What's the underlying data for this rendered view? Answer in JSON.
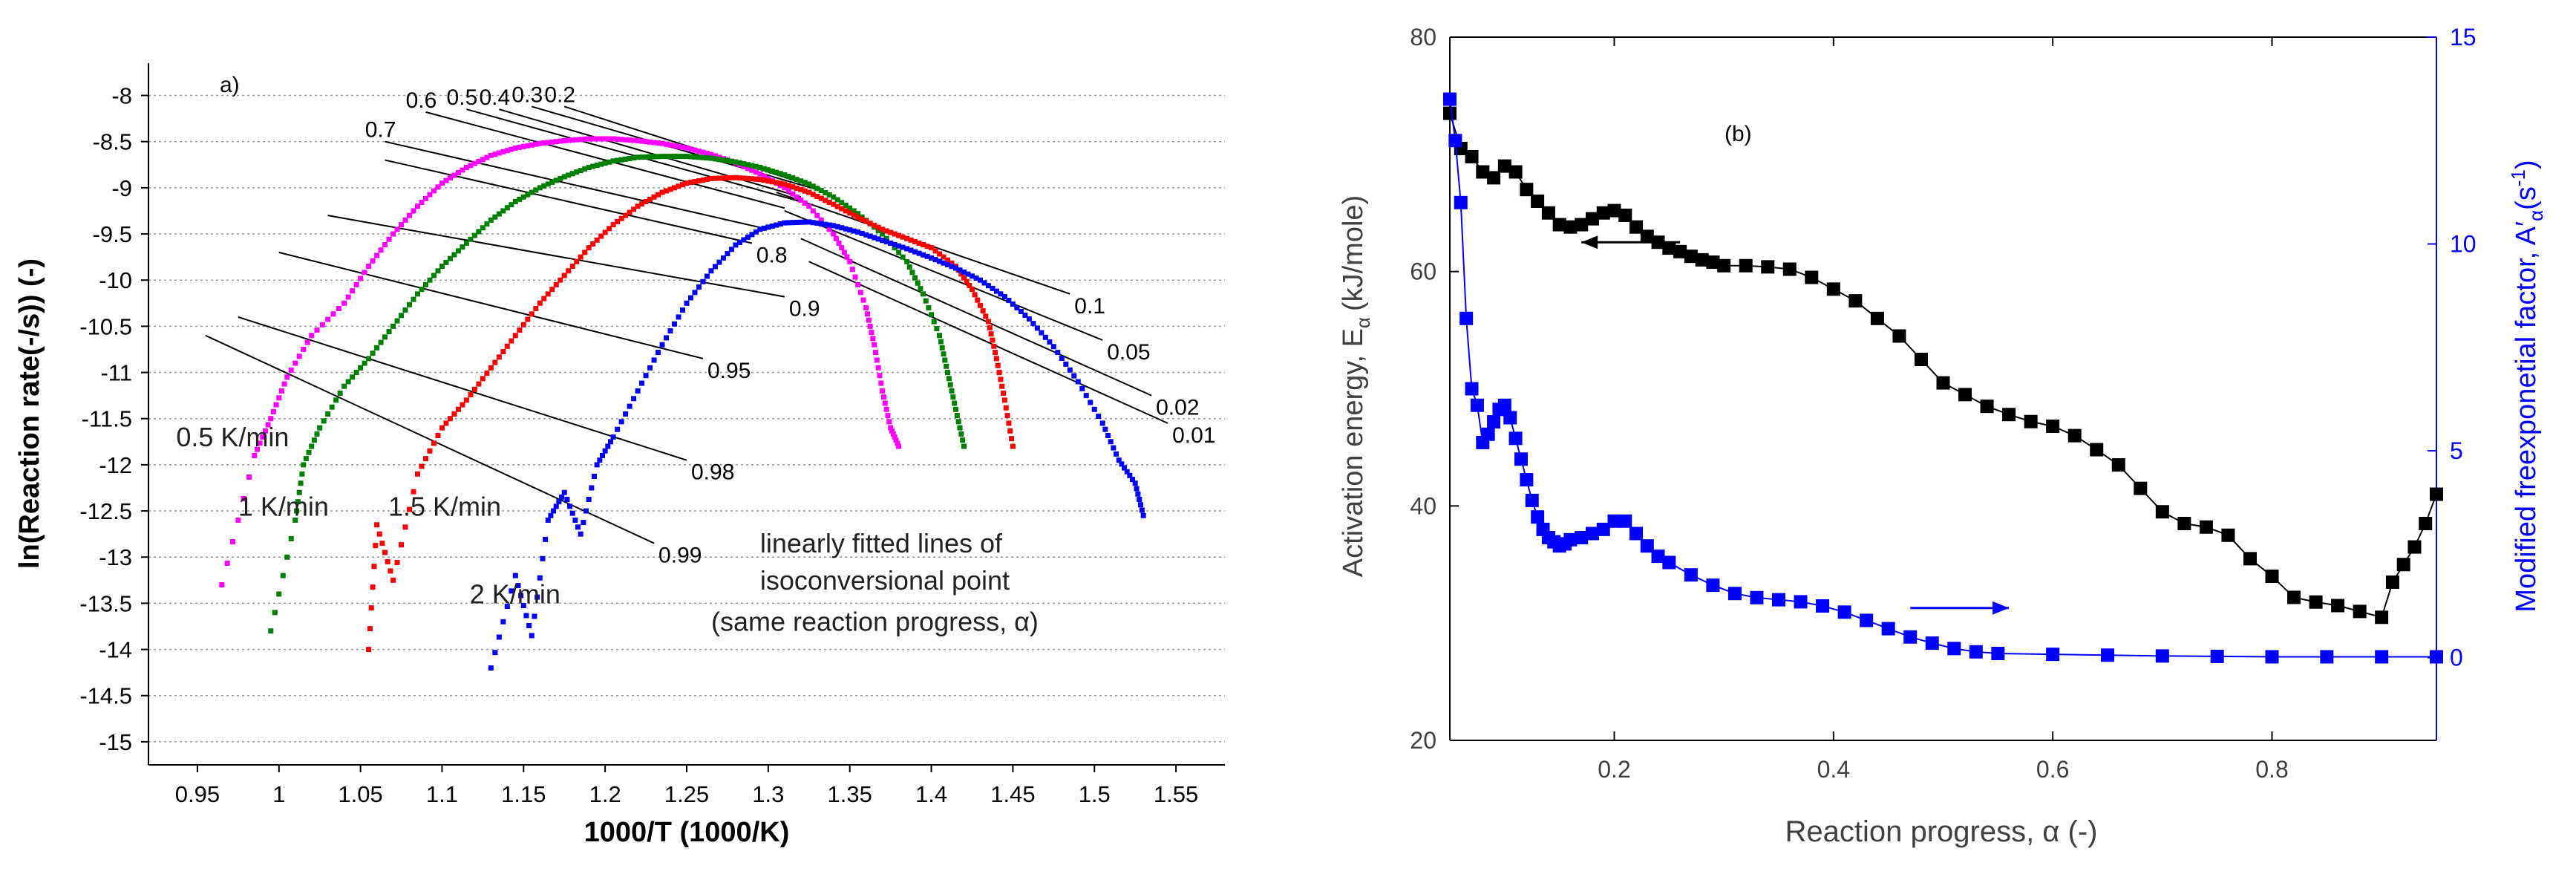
{
  "chart_data": [
    {
      "type": "scatter",
      "panel_label": "a)",
      "xlabel": "1000/T (1000/K)",
      "ylabel": "ln(Reaction rate(-/s)) (-)",
      "xlim": [
        0.92,
        1.58
      ],
      "ylim": [
        -15.25,
        -7.65
      ],
      "x_ticks": [
        0.95,
        1.0,
        1.05,
        1.1,
        1.15,
        1.2,
        1.25,
        1.3,
        1.35,
        1.4,
        1.45,
        1.5,
        1.55
      ],
      "x_tick_labels": [
        "0.95",
        "1",
        "1.05",
        "1.1",
        "1.15",
        "1.2",
        "1.25",
        "1.3",
        "1.35",
        "1.4",
        "1.45",
        "1.5",
        "1.55"
      ],
      "y_ticks": [
        -8,
        -8.5,
        -9,
        -9.5,
        -10,
        -10.5,
        -11,
        -11.5,
        -12,
        -12.5,
        -13,
        -13.5,
        -14,
        -14.5,
        -15
      ],
      "y_tick_labels": [
        "-8",
        "-8.5",
        "-9",
        "-9.5",
        "-10",
        "-10.5",
        "-11",
        "-11.5",
        "-12",
        "-12.5",
        "-13",
        "-13.5",
        "-14",
        "-14.5",
        "-15"
      ],
      "grid": "horizontal dotted",
      "series": [
        {
          "name": "0.5 K/min",
          "color": "#ff00ff",
          "x": [
            0.965,
            0.985,
            0.995,
            1.005,
            1.02,
            1.04,
            1.055,
            1.07,
            1.085,
            1.1,
            1.115,
            1.13,
            1.145,
            1.16,
            1.175,
            1.19,
            1.205,
            1.22,
            1.235,
            1.25,
            1.265,
            1.28,
            1.295,
            1.31,
            1.325,
            1.34,
            1.35,
            1.36,
            1.365,
            1.37,
            1.375,
            1.38
          ],
          "y": [
            -13.3,
            -11.9,
            -11.5,
            -11.05,
            -10.6,
            -10.25,
            -9.85,
            -9.5,
            -9.2,
            -8.95,
            -8.78,
            -8.65,
            -8.57,
            -8.52,
            -8.49,
            -8.47,
            -8.47,
            -8.49,
            -8.52,
            -8.57,
            -8.64,
            -8.73,
            -8.85,
            -9.0,
            -9.2,
            -9.5,
            -9.8,
            -10.3,
            -10.7,
            -11.2,
            -11.6,
            -11.8
          ]
        },
        {
          "name": "1 K/min",
          "color": "#008000",
          "x": [
            0.995,
            1.01,
            1.015,
            1.025,
            1.04,
            1.055,
            1.07,
            1.085,
            1.1,
            1.115,
            1.13,
            1.145,
            1.16,
            1.175,
            1.19,
            1.205,
            1.22,
            1.235,
            1.25,
            1.265,
            1.28,
            1.295,
            1.31,
            1.325,
            1.34,
            1.355,
            1.37,
            1.385,
            1.395,
            1.405,
            1.41,
            1.415,
            1.42
          ],
          "y": [
            -13.8,
            -12.6,
            -12.0,
            -11.6,
            -11.15,
            -10.85,
            -10.5,
            -10.15,
            -9.85,
            -9.6,
            -9.35,
            -9.15,
            -9.0,
            -8.88,
            -8.78,
            -8.71,
            -8.67,
            -8.66,
            -8.66,
            -8.68,
            -8.72,
            -8.78,
            -8.86,
            -8.96,
            -9.1,
            -9.28,
            -9.5,
            -9.8,
            -10.15,
            -10.6,
            -11.0,
            -11.4,
            -11.8
          ]
        },
        {
          "name": "1.5 K/min",
          "color": "#ff0000",
          "x": [
            1.055,
            1.06,
            1.07,
            1.085,
            1.1,
            1.115,
            1.13,
            1.145,
            1.16,
            1.175,
            1.19,
            1.205,
            1.22,
            1.235,
            1.25,
            1.265,
            1.28,
            1.295,
            1.31,
            1.325,
            1.34,
            1.355,
            1.37,
            1.385,
            1.4,
            1.415,
            1.425,
            1.435,
            1.44,
            1.445,
            1.45
          ],
          "y": [
            -14.0,
            -12.65,
            -13.25,
            -12.1,
            -11.6,
            -11.3,
            -10.95,
            -10.6,
            -10.25,
            -9.95,
            -9.65,
            -9.4,
            -9.2,
            -9.05,
            -8.95,
            -8.9,
            -8.89,
            -8.91,
            -8.96,
            -9.05,
            -9.18,
            -9.32,
            -9.45,
            -9.55,
            -9.65,
            -9.85,
            -10.1,
            -10.45,
            -10.85,
            -11.3,
            -11.8
          ]
        },
        {
          "name": "2 K/min",
          "color": "#0000ff",
          "x": [
            1.13,
            1.145,
            1.155,
            1.165,
            1.175,
            1.185,
            1.195,
            1.205,
            1.22,
            1.235,
            1.25,
            1.265,
            1.28,
            1.295,
            1.31,
            1.325,
            1.34,
            1.355,
            1.37,
            1.385,
            1.4,
            1.415,
            1.43,
            1.445,
            1.46,
            1.475,
            1.49,
            1.505,
            1.515,
            1.525,
            1.53
          ],
          "y": [
            -14.2,
            -13.2,
            -13.85,
            -12.6,
            -12.3,
            -12.75,
            -12.0,
            -11.7,
            -11.2,
            -10.7,
            -10.25,
            -9.9,
            -9.62,
            -9.45,
            -9.38,
            -9.37,
            -9.41,
            -9.48,
            -9.57,
            -9.66,
            -9.76,
            -9.87,
            -10.0,
            -10.18,
            -10.42,
            -10.72,
            -11.1,
            -11.55,
            -11.95,
            -12.2,
            -12.55
          ]
        }
      ],
      "isoconversional_lines": [
        {
          "label": "0.2",
          "x": [
            1.175,
            1.33
          ],
          "y": [
            -8.12,
            -9.0
          ]
        },
        {
          "label": "0.3",
          "x": [
            1.155,
            1.33
          ],
          "y": [
            -8.12,
            -9.02
          ]
        },
        {
          "label": "0.4",
          "x": [
            1.135,
            1.32
          ],
          "y": [
            -8.15,
            -9.1
          ]
        },
        {
          "label": "0.5",
          "x": [
            1.115,
            1.32
          ],
          "y": [
            -8.15,
            -9.15
          ]
        },
        {
          "label": "0.6",
          "x": [
            1.09,
            1.31
          ],
          "y": [
            -8.18,
            -9.22
          ]
        },
        {
          "label": "0.7",
          "x": [
            1.065,
            1.3
          ],
          "y": [
            -8.5,
            -9.45
          ]
        },
        {
          "label": "0.8",
          "x": [
            1.065,
            1.29
          ],
          "y": [
            -8.7,
            -9.6
          ]
        },
        {
          "label": "0.9",
          "x": [
            1.03,
            1.31
          ],
          "y": [
            -9.3,
            -10.18
          ]
        },
        {
          "label": "0.95",
          "x": [
            1.0,
            1.26
          ],
          "y": [
            -9.7,
            -10.85
          ]
        },
        {
          "label": "0.98",
          "x": [
            0.975,
            1.25
          ],
          "y": [
            -10.4,
            -11.95
          ]
        },
        {
          "label": "0.99",
          "x": [
            0.955,
            1.23
          ],
          "y": [
            -10.6,
            -12.85
          ]
        },
        {
          "label": "0.1",
          "x": [
            1.305,
            1.485
          ],
          "y": [
            -9.05,
            -10.15
          ]
        },
        {
          "label": "0.05",
          "x": [
            1.31,
            1.505
          ],
          "y": [
            -9.25,
            -10.65
          ]
        },
        {
          "label": "0.02",
          "x": [
            1.32,
            1.535
          ],
          "y": [
            -9.55,
            -11.25
          ]
        },
        {
          "label": "0.01",
          "x": [
            1.325,
            1.545
          ],
          "y": [
            -9.8,
            -11.55
          ]
        }
      ],
      "annotations": [
        {
          "text": "0.5 K/min",
          "x": 0.937,
          "y": -11.8
        },
        {
          "text": "1 K/min",
          "x": 0.975,
          "y": -12.55
        },
        {
          "text": "1.5 K/min",
          "x": 1.067,
          "y": -12.55
        },
        {
          "text": "2 K/min",
          "x": 1.117,
          "y": -13.5
        },
        {
          "text": "linearly fitted lines of",
          "x": 1.295,
          "y": -12.95
        },
        {
          "text": "isoconversional point",
          "x": 1.295,
          "y": -13.35
        },
        {
          "text": "(same reaction progress, α)",
          "x": 1.265,
          "y": -13.8
        }
      ]
    },
    {
      "type": "line",
      "panel_label": "(b)",
      "xlabel": "Reaction progress, α (-)",
      "ylabel_left": "Activation energy, E",
      "ylabel_left_sub": "α",
      "ylabel_left_tail": "(kJ/mole)",
      "ylabel_right": "Modified freexponetial factor, A",
      "ylabel_right_mark": "′",
      "ylabel_right_sub": "α",
      "ylabel_right_tail": "(s",
      "ylabel_right_sup": "-1",
      "ylabel_right_close": ")",
      "right_axis_color": "#0000ff",
      "xlim": [
        0.05,
        0.95
      ],
      "ylim_left": [
        20,
        80
      ],
      "ylim_right": [
        -2,
        15
      ],
      "x_ticks": [
        0.2,
        0.4,
        0.6,
        0.8
      ],
      "x_tick_labels": [
        "0.2",
        "0.4",
        "0.6",
        "0.8"
      ],
      "y_left_ticks": [
        20,
        40,
        60,
        80
      ],
      "y_left_tick_labels": [
        "20",
        "40",
        "60",
        "80"
      ],
      "y_right_ticks": [
        0,
        5,
        10,
        15
      ],
      "y_right_tick_labels": [
        "0",
        "5",
        "10",
        "15"
      ],
      "series": [
        {
          "name": "Activation energy",
          "axis": "left",
          "color": "#000000",
          "x": [
            0.05,
            0.06,
            0.07,
            0.08,
            0.09,
            0.1,
            0.11,
            0.12,
            0.13,
            0.14,
            0.15,
            0.16,
            0.17,
            0.18,
            0.19,
            0.2,
            0.21,
            0.22,
            0.23,
            0.24,
            0.25,
            0.26,
            0.27,
            0.28,
            0.29,
            0.3,
            0.32,
            0.34,
            0.36,
            0.38,
            0.4,
            0.42,
            0.44,
            0.46,
            0.48,
            0.5,
            0.52,
            0.54,
            0.56,
            0.58,
            0.6,
            0.62,
            0.64,
            0.66,
            0.68,
            0.7,
            0.72,
            0.74,
            0.76,
            0.78,
            0.8,
            0.82,
            0.84,
            0.86,
            0.88,
            0.9,
            0.91,
            0.92,
            0.93,
            0.94,
            0.95
          ],
          "y": [
            73.5,
            70.5,
            69.8,
            68.5,
            68.0,
            69.0,
            68.5,
            67.0,
            66.0,
            65.0,
            64.0,
            63.8,
            64.0,
            64.5,
            65.0,
            65.2,
            64.8,
            63.8,
            63.0,
            62.5,
            62.0,
            61.7,
            61.3,
            61.0,
            60.8,
            60.5,
            60.5,
            60.4,
            60.2,
            59.5,
            58.5,
            57.5,
            56.0,
            54.5,
            52.5,
            50.5,
            49.5,
            48.5,
            47.8,
            47.2,
            46.8,
            46.0,
            44.8,
            43.5,
            41.5,
            39.5,
            38.5,
            38.2,
            37.5,
            35.5,
            34.0,
            32.2,
            31.8,
            31.5,
            31.0,
            30.5,
            33.5,
            35.0,
            36.5,
            38.5,
            41.0
          ]
        },
        {
          "name": "Modified freexponetial factor",
          "axis": "right",
          "color": "#0000ff",
          "x": [
            0.05,
            0.055,
            0.06,
            0.065,
            0.07,
            0.075,
            0.08,
            0.085,
            0.09,
            0.095,
            0.1,
            0.105,
            0.11,
            0.115,
            0.12,
            0.125,
            0.13,
            0.135,
            0.14,
            0.145,
            0.15,
            0.155,
            0.16,
            0.17,
            0.18,
            0.19,
            0.2,
            0.21,
            0.22,
            0.23,
            0.24,
            0.25,
            0.27,
            0.29,
            0.31,
            0.33,
            0.35,
            0.37,
            0.39,
            0.41,
            0.43,
            0.45,
            0.47,
            0.49,
            0.51,
            0.53,
            0.55,
            0.6,
            0.65,
            0.7,
            0.75,
            0.8,
            0.85,
            0.9,
            0.95
          ],
          "y": [
            13.5,
            12.5,
            11.0,
            8.2,
            6.5,
            6.1,
            5.2,
            5.4,
            5.7,
            6.0,
            6.1,
            5.8,
            5.3,
            4.8,
            4.3,
            3.8,
            3.4,
            3.1,
            2.9,
            2.8,
            2.7,
            2.75,
            2.85,
            2.9,
            3.0,
            3.1,
            3.3,
            3.3,
            3.0,
            2.7,
            2.45,
            2.3,
            2.0,
            1.75,
            1.55,
            1.45,
            1.4,
            1.35,
            1.25,
            1.1,
            0.9,
            0.7,
            0.5,
            0.35,
            0.22,
            0.14,
            0.1,
            0.08,
            0.06,
            0.04,
            0.03,
            0.02,
            0.02,
            0.02,
            0.02
          ]
        }
      ],
      "arrows": [
        {
          "direction": "left",
          "axis": "left",
          "x_from": 0.26,
          "x_to": 0.17,
          "y": 62.5
        },
        {
          "direction": "right",
          "axis": "right",
          "x_from": 0.47,
          "x_to": 0.56,
          "y": 1.2
        }
      ]
    }
  ]
}
